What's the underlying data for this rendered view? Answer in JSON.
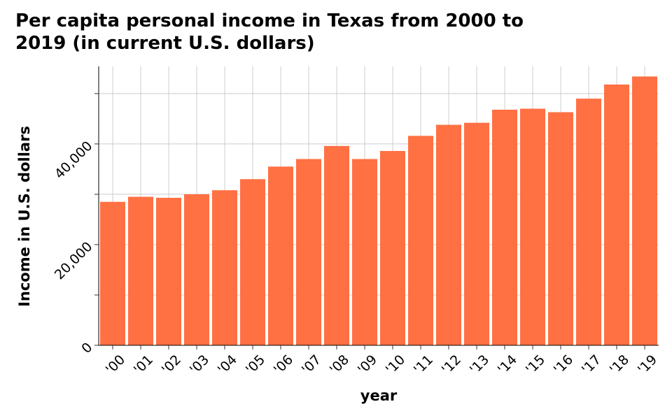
{
  "chart_data": {
    "type": "bar",
    "title": "Per capita personal income in Texas from 2000 to 2019 (in current U.S. dollars)",
    "xlabel": "year",
    "ylabel": "Income in U.S. dollars",
    "categories": [
      "'00",
      "'01",
      "'02",
      "'03",
      "'04",
      "'05",
      "'06",
      "'07",
      "'08",
      "'09",
      "'10",
      "'11",
      "'12",
      "'13",
      "'14",
      "'15",
      "'16",
      "'17",
      "'18",
      "'19"
    ],
    "values": [
      28500,
      29500,
      29300,
      30000,
      30800,
      33000,
      35500,
      37000,
      39600,
      37000,
      38600,
      41600,
      43800,
      44200,
      46800,
      47000,
      46300,
      49000,
      51800,
      53400
    ],
    "ylim": [
      0,
      55400
    ],
    "yticks": [
      0,
      20000,
      40000
    ],
    "ytick_labels": [
      "0",
      "20,000",
      "40,000"
    ],
    "grid": true,
    "bar_color": "#ff7043",
    "grid_color": "#cccccc",
    "background": "#ffffff"
  }
}
